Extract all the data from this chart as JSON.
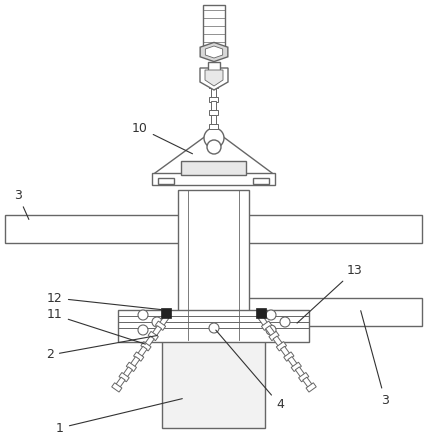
{
  "bg_color": "#ffffff",
  "lc": "#666666",
  "lw": 1.0,
  "fig_w": 4.27,
  "fig_h": 4.43,
  "dpi": 100
}
